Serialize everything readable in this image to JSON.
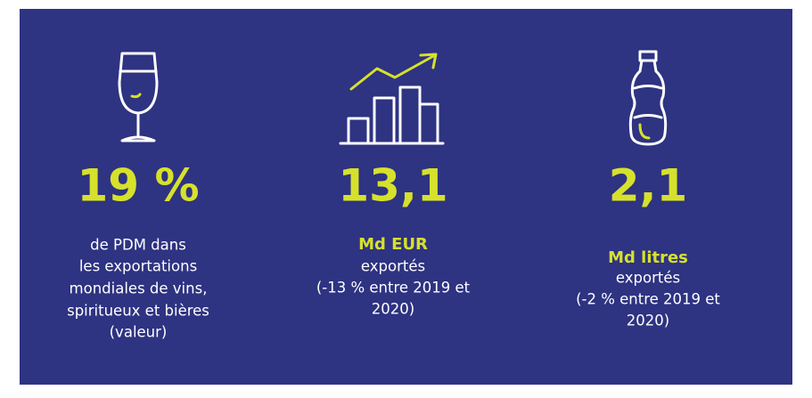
{
  "items": [
    {
      "value": "19 %",
      "description": [
        "de PDM dans",
        "les exportations",
        "mondiales de vins,",
        "spiritueux et bières",
        "(valeur)"
      ]
    },
    {
      "value": "13,1",
      "unit": "Md EUR",
      "description": [
        "exportés",
        "(-13 % entre 2019 et",
        "2020)"
      ]
    },
    {
      "value": "2,1",
      "unit": "Md litres",
      "description": [
        "exportés",
        "(-2 % entre 2019 et",
        "2020)"
      ]
    }
  ]
}
